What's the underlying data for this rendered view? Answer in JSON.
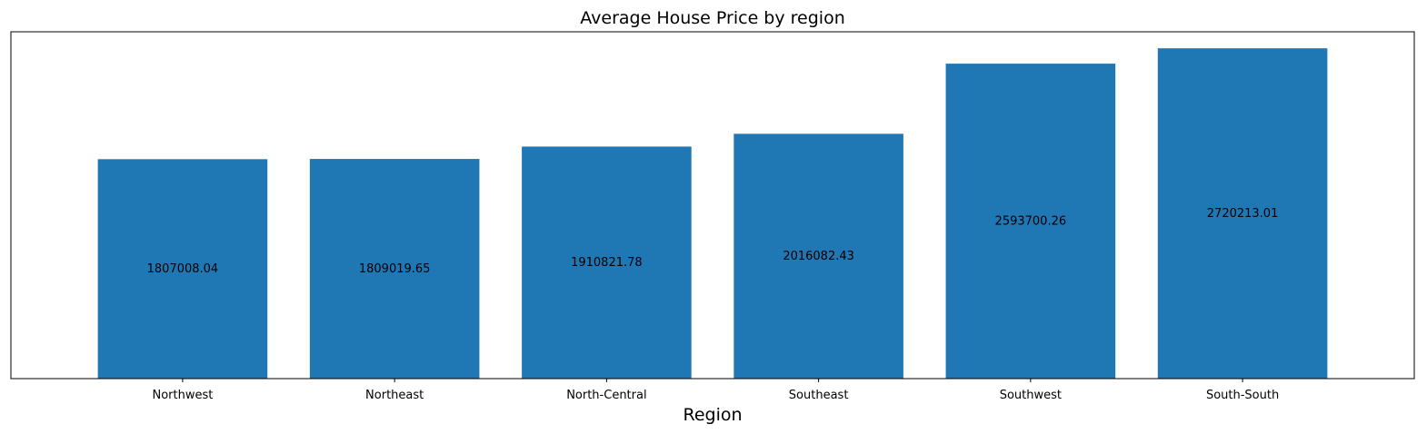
{
  "chart_data": {
    "type": "bar",
    "title": "Average House Price by region",
    "xlabel": "Region",
    "ylabel": "",
    "categories": [
      "Northwest",
      "Northeast",
      "North-Central",
      "Southeast",
      "Southwest",
      "South-South"
    ],
    "values": [
      1807008.04,
      1809019.65,
      1910821.78,
      2016082.43,
      2593700.26,
      2720213.01
    ],
    "data_labels": [
      "1807008.04",
      "1809019.65",
      "1910821.78",
      "2016082.43",
      "2593700.26",
      "2720213.01"
    ],
    "ylim": [
      0,
      2856223.66
    ],
    "y_ticks_visible": false,
    "grid": false,
    "legend": "none",
    "colors": {
      "bar": "#1f77b4",
      "frame": "#000000",
      "text": "#000000"
    }
  }
}
